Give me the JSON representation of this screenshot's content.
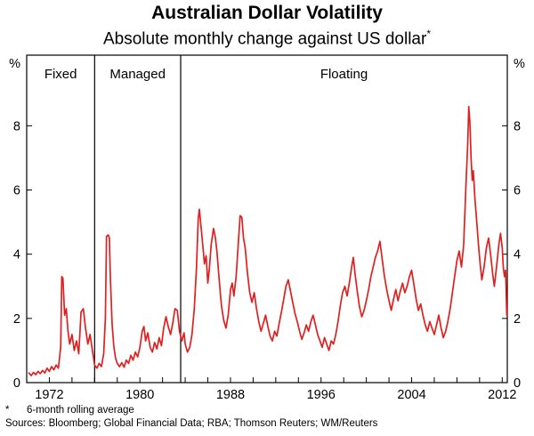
{
  "header": {
    "title": "Australian Dollar Volatility",
    "subtitle": "Absolute monthly change against US dollar"
  },
  "footnotes": {
    "marker": "*",
    "text": "6-month rolling average",
    "sources": "Sources: Bloomberg; Global Financial Data; RBA; Thomson Reuters; WM/Reuters"
  },
  "chart_data": {
    "type": "line",
    "title": "Australian Dollar Volatility",
    "subtitle": "Absolute monthly change against US dollar",
    "xlabel": "",
    "ylabel": "%",
    "unit": "%",
    "xlim": [
      1970,
      2012.45
    ],
    "ylim": [
      0,
      10.2
    ],
    "y_ticks": [
      0,
      2,
      4,
      6,
      8
    ],
    "x_tick_labels": [
      1972,
      1980,
      1988,
      1996,
      2004,
      2012
    ],
    "x_minor_start": 1972,
    "x_minor_step": 2,
    "grid": false,
    "legend": false,
    "line_color": "#e02020",
    "regimes": [
      {
        "label": "Fixed",
        "start": 1970,
        "end": 1976.0
      },
      {
        "label": "Managed",
        "start": 1976.0,
        "end": 1983.6
      },
      {
        "label": "Floating",
        "start": 1983.6,
        "end": 2012.45
      }
    ],
    "series": [
      {
        "name": "AUD/USD absolute monthly change (6-month rolling average, %)",
        "points": [
          [
            1970.2,
            0.3
          ],
          [
            1970.4,
            0.22
          ],
          [
            1970.6,
            0.32
          ],
          [
            1970.8,
            0.25
          ],
          [
            1971.0,
            0.35
          ],
          [
            1971.2,
            0.28
          ],
          [
            1971.4,
            0.38
          ],
          [
            1971.6,
            0.3
          ],
          [
            1971.8,
            0.45
          ],
          [
            1972.0,
            0.35
          ],
          [
            1972.2,
            0.5
          ],
          [
            1972.4,
            0.4
          ],
          [
            1972.6,
            0.55
          ],
          [
            1972.8,
            0.45
          ],
          [
            1973.0,
            1.1
          ],
          [
            1973.1,
            3.3
          ],
          [
            1973.2,
            3.25
          ],
          [
            1973.35,
            2.1
          ],
          [
            1973.5,
            2.3
          ],
          [
            1973.65,
            1.6
          ],
          [
            1973.8,
            1.2
          ],
          [
            1974.0,
            1.5
          ],
          [
            1974.2,
            1.0
          ],
          [
            1974.4,
            1.3
          ],
          [
            1974.6,
            0.9
          ],
          [
            1974.8,
            2.2
          ],
          [
            1975.0,
            2.3
          ],
          [
            1975.2,
            1.7
          ],
          [
            1975.4,
            1.2
          ],
          [
            1975.6,
            1.5
          ],
          [
            1975.8,
            1.0
          ],
          [
            1976.0,
            0.55
          ],
          [
            1976.2,
            0.45
          ],
          [
            1976.4,
            0.6
          ],
          [
            1976.6,
            0.5
          ],
          [
            1976.8,
            0.9
          ],
          [
            1976.95,
            2.0
          ],
          [
            1977.05,
            4.55
          ],
          [
            1977.2,
            4.6
          ],
          [
            1977.3,
            4.5
          ],
          [
            1977.4,
            3.2
          ],
          [
            1977.55,
            1.8
          ],
          [
            1977.7,
            1.1
          ],
          [
            1977.85,
            0.75
          ],
          [
            1978.0,
            0.6
          ],
          [
            1978.2,
            0.5
          ],
          [
            1978.4,
            0.62
          ],
          [
            1978.6,
            0.48
          ],
          [
            1978.8,
            0.7
          ],
          [
            1979.0,
            0.6
          ],
          [
            1979.2,
            0.85
          ],
          [
            1979.4,
            0.7
          ],
          [
            1979.6,
            0.95
          ],
          [
            1979.8,
            0.8
          ],
          [
            1980.0,
            1.1
          ],
          [
            1980.2,
            1.6
          ],
          [
            1980.35,
            1.75
          ],
          [
            1980.5,
            1.3
          ],
          [
            1980.7,
            1.55
          ],
          [
            1980.9,
            1.1
          ],
          [
            1981.1,
            0.95
          ],
          [
            1981.3,
            1.25
          ],
          [
            1981.5,
            1.05
          ],
          [
            1981.7,
            1.4
          ],
          [
            1981.9,
            1.15
          ],
          [
            1982.1,
            1.7
          ],
          [
            1982.3,
            2.05
          ],
          [
            1982.5,
            1.75
          ],
          [
            1982.7,
            1.5
          ],
          [
            1982.9,
            1.85
          ],
          [
            1983.1,
            2.3
          ],
          [
            1983.3,
            2.25
          ],
          [
            1983.5,
            1.6
          ],
          [
            1983.7,
            1.3
          ],
          [
            1983.9,
            1.55
          ],
          [
            1984.0,
            1.2
          ],
          [
            1984.2,
            0.95
          ],
          [
            1984.4,
            1.1
          ],
          [
            1984.6,
            1.5
          ],
          [
            1984.8,
            2.3
          ],
          [
            1985.0,
            3.6
          ],
          [
            1985.15,
            5.1
          ],
          [
            1985.25,
            5.4
          ],
          [
            1985.4,
            4.85
          ],
          [
            1985.55,
            4.3
          ],
          [
            1985.7,
            3.7
          ],
          [
            1985.85,
            3.95
          ],
          [
            1986.0,
            3.1
          ],
          [
            1986.15,
            3.6
          ],
          [
            1986.3,
            4.3
          ],
          [
            1986.5,
            4.8
          ],
          [
            1986.65,
            4.55
          ],
          [
            1986.8,
            4.1
          ],
          [
            1987.0,
            3.2
          ],
          [
            1987.2,
            2.4
          ],
          [
            1987.4,
            1.95
          ],
          [
            1987.6,
            1.7
          ],
          [
            1987.8,
            2.1
          ],
          [
            1988.0,
            2.9
          ],
          [
            1988.15,
            3.1
          ],
          [
            1988.3,
            2.7
          ],
          [
            1988.5,
            3.3
          ],
          [
            1988.7,
            4.4
          ],
          [
            1988.85,
            5.2
          ],
          [
            1989.0,
            5.15
          ],
          [
            1989.15,
            4.5
          ],
          [
            1989.3,
            4.2
          ],
          [
            1989.5,
            3.4
          ],
          [
            1989.7,
            2.8
          ],
          [
            1989.9,
            2.5
          ],
          [
            1990.1,
            2.8
          ],
          [
            1990.3,
            2.3
          ],
          [
            1990.5,
            1.9
          ],
          [
            1990.7,
            1.6
          ],
          [
            1990.9,
            1.85
          ],
          [
            1991.1,
            2.1
          ],
          [
            1991.3,
            1.75
          ],
          [
            1991.5,
            1.45
          ],
          [
            1991.7,
            1.3
          ],
          [
            1991.9,
            1.6
          ],
          [
            1992.1,
            1.45
          ],
          [
            1992.3,
            1.85
          ],
          [
            1992.5,
            2.2
          ],
          [
            1992.7,
            2.6
          ],
          [
            1992.9,
            3.0
          ],
          [
            1993.1,
            3.2
          ],
          [
            1993.3,
            2.85
          ],
          [
            1993.5,
            2.5
          ],
          [
            1993.7,
            2.15
          ],
          [
            1993.9,
            1.9
          ],
          [
            1994.1,
            1.6
          ],
          [
            1994.3,
            1.35
          ],
          [
            1994.5,
            1.55
          ],
          [
            1994.7,
            1.8
          ],
          [
            1994.9,
            1.6
          ],
          [
            1995.1,
            1.9
          ],
          [
            1995.3,
            2.1
          ],
          [
            1995.5,
            1.8
          ],
          [
            1995.7,
            1.5
          ],
          [
            1995.9,
            1.3
          ],
          [
            1996.1,
            1.1
          ],
          [
            1996.3,
            1.4
          ],
          [
            1996.5,
            1.2
          ],
          [
            1996.7,
            1.0
          ],
          [
            1996.9,
            1.3
          ],
          [
            1997.1,
            1.2
          ],
          [
            1997.3,
            1.5
          ],
          [
            1997.5,
            1.9
          ],
          [
            1997.7,
            2.4
          ],
          [
            1997.9,
            2.8
          ],
          [
            1998.1,
            3.0
          ],
          [
            1998.3,
            2.7
          ],
          [
            1998.5,
            3.1
          ],
          [
            1998.7,
            3.6
          ],
          [
            1998.85,
            3.9
          ],
          [
            1999.0,
            3.4
          ],
          [
            1999.2,
            2.85
          ],
          [
            1999.4,
            2.35
          ],
          [
            1999.6,
            2.05
          ],
          [
            1999.8,
            2.25
          ],
          [
            2000.0,
            2.55
          ],
          [
            2000.2,
            2.9
          ],
          [
            2000.4,
            3.3
          ],
          [
            2000.6,
            3.6
          ],
          [
            2000.8,
            3.9
          ],
          [
            2001.0,
            4.1
          ],
          [
            2001.2,
            4.4
          ],
          [
            2001.4,
            3.85
          ],
          [
            2001.6,
            3.3
          ],
          [
            2001.8,
            2.9
          ],
          [
            2002.0,
            2.55
          ],
          [
            2002.2,
            2.25
          ],
          [
            2002.4,
            2.6
          ],
          [
            2002.6,
            2.9
          ],
          [
            2002.8,
            2.55
          ],
          [
            2003.0,
            2.85
          ],
          [
            2003.2,
            3.1
          ],
          [
            2003.4,
            2.8
          ],
          [
            2003.6,
            3.0
          ],
          [
            2003.8,
            3.3
          ],
          [
            2004.0,
            3.5
          ],
          [
            2004.2,
            3.05
          ],
          [
            2004.4,
            2.6
          ],
          [
            2004.6,
            2.25
          ],
          [
            2004.8,
            2.45
          ],
          [
            2005.0,
            2.1
          ],
          [
            2005.2,
            1.8
          ],
          [
            2005.4,
            1.6
          ],
          [
            2005.6,
            1.9
          ],
          [
            2005.8,
            1.7
          ],
          [
            2006.0,
            1.5
          ],
          [
            2006.2,
            1.8
          ],
          [
            2006.4,
            2.1
          ],
          [
            2006.6,
            1.7
          ],
          [
            2006.8,
            1.4
          ],
          [
            2007.0,
            1.6
          ],
          [
            2007.2,
            1.9
          ],
          [
            2007.4,
            2.3
          ],
          [
            2007.6,
            2.8
          ],
          [
            2007.8,
            3.3
          ],
          [
            2008.0,
            3.8
          ],
          [
            2008.2,
            4.1
          ],
          [
            2008.4,
            3.6
          ],
          [
            2008.6,
            4.3
          ],
          [
            2008.8,
            6.2
          ],
          [
            2008.95,
            7.4
          ],
          [
            2009.05,
            8.6
          ],
          [
            2009.15,
            8.1
          ],
          [
            2009.25,
            7.0
          ],
          [
            2009.35,
            6.3
          ],
          [
            2009.45,
            6.6
          ],
          [
            2009.6,
            5.7
          ],
          [
            2009.75,
            5.0
          ],
          [
            2009.9,
            4.3
          ],
          [
            2010.05,
            3.7
          ],
          [
            2010.2,
            3.2
          ],
          [
            2010.4,
            3.6
          ],
          [
            2010.6,
            4.2
          ],
          [
            2010.8,
            4.5
          ],
          [
            2011.0,
            3.9
          ],
          [
            2011.15,
            3.4
          ],
          [
            2011.3,
            3.0
          ],
          [
            2011.5,
            3.6
          ],
          [
            2011.7,
            4.3
          ],
          [
            2011.85,
            4.65
          ],
          [
            2012.0,
            4.2
          ],
          [
            2012.1,
            3.6
          ],
          [
            2012.2,
            3.3
          ],
          [
            2012.3,
            3.5
          ],
          [
            2012.4,
            2.1
          ]
        ]
      }
    ]
  }
}
